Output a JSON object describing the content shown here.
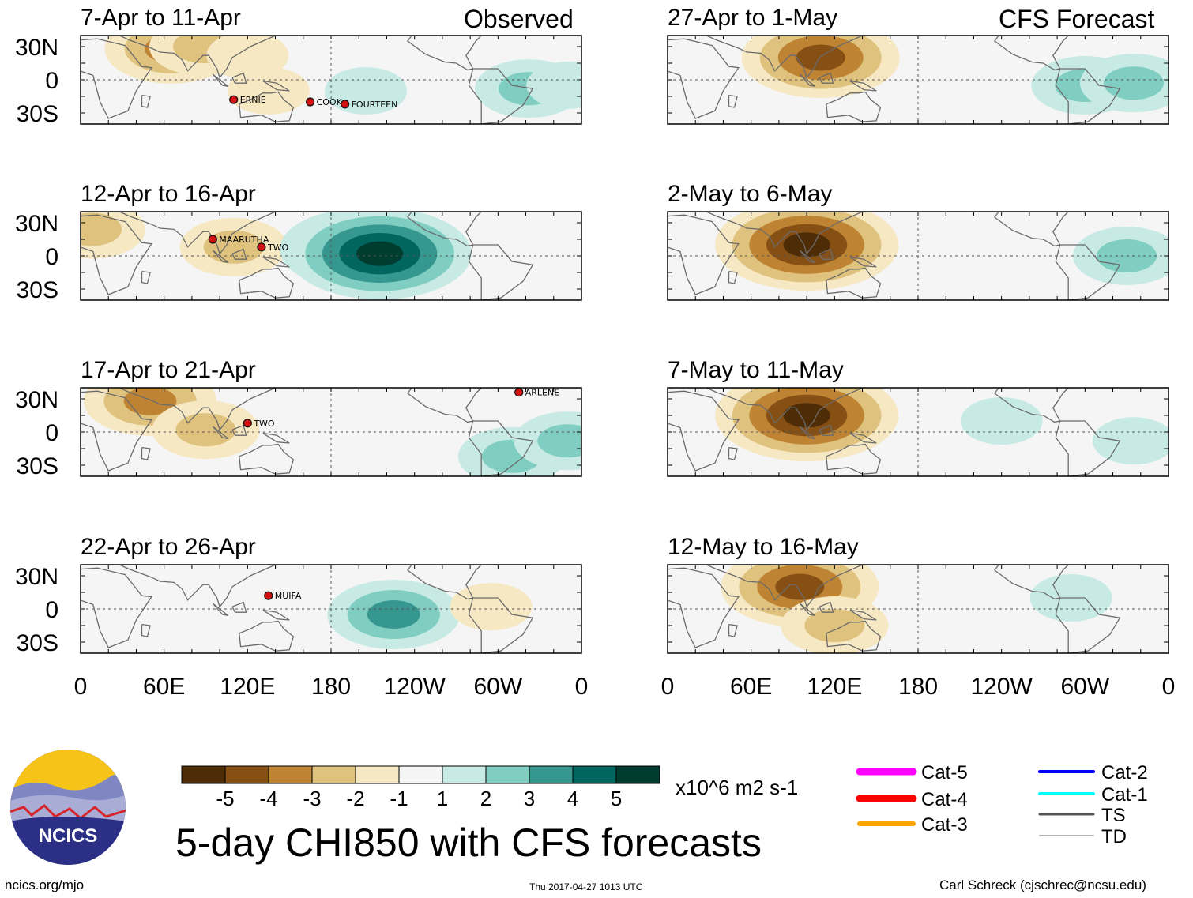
{
  "title": "5-day CHI850 with CFS forecasts",
  "headers": {
    "observed": "Observed",
    "forecast": "CFS Forecast"
  },
  "logo": {
    "text": "NCICS"
  },
  "footer": {
    "left": "ncics.org/mjo",
    "timestamp": "Thu 2017-04-27 1013 UTC",
    "credit": "Carl Schreck (cjschrec@ncsu.edu)"
  },
  "chart_data": {
    "type": "heatmap",
    "variable": "CHI850",
    "units": "x10^6 m2 s-1",
    "x_ticks": [
      "0",
      "60E",
      "120E",
      "180",
      "120W",
      "60W",
      "0"
    ],
    "y_ticks": [
      "30N",
      "0",
      "30S"
    ],
    "lon_range": [
      0,
      360
    ],
    "lat_range": [
      -40,
      40
    ],
    "colorbar": {
      "labels": [
        "-5",
        "-4",
        "-3",
        "-2",
        "-1",
        "1",
        "2",
        "3",
        "4",
        "5"
      ],
      "colors": [
        "#4e2c06",
        "#865014",
        "#bf8433",
        "#dfc27d",
        "#f6e8c3",
        "#f5f5f5",
        "#c7eae5",
        "#80cdc1",
        "#35978f",
        "#01665e",
        "#003c30"
      ]
    },
    "legend": [
      {
        "label": "Cat-5",
        "color": "#ff00ff"
      },
      {
        "label": "Cat-4",
        "color": "#ff0000"
      },
      {
        "label": "Cat-3",
        "color": "#ffa500"
      },
      {
        "label": "Cat-2",
        "color": "#0000ff"
      },
      {
        "label": "Cat-1",
        "color": "#00ffff"
      },
      {
        "label": "TS",
        "color": "#555555"
      },
      {
        "label": "TD",
        "color": "#999999"
      }
    ],
    "panels": [
      {
        "period": "7-Apr to 11-Apr",
        "kind": "observed",
        "anomalies": [
          {
            "lon": 65,
            "lat": 28,
            "value": -3
          },
          {
            "lon": 88,
            "lat": 30,
            "value": -2
          },
          {
            "lon": 120,
            "lat": 22,
            "value": -1
          },
          {
            "lon": 135,
            "lat": -10,
            "value": -1
          },
          {
            "lon": 205,
            "lat": -10,
            "value": 1
          },
          {
            "lon": 322,
            "lat": -8,
            "value": 2
          },
          {
            "lon": 350,
            "lat": -5,
            "value": 1
          }
        ],
        "storms": [
          {
            "name": "ERNIE",
            "lon": 110,
            "lat": -18
          },
          {
            "name": "COOK",
            "lon": 165,
            "lat": -20
          },
          {
            "name": "FOURTEEN",
            "lon": 190,
            "lat": -22
          }
        ]
      },
      {
        "period": "12-Apr to 16-Apr",
        "kind": "observed",
        "anomalies": [
          {
            "lon": 8,
            "lat": 24,
            "value": -2
          },
          {
            "lon": 110,
            "lat": 8,
            "value": -2
          },
          {
            "lon": 200,
            "lat": 6,
            "value": 4
          },
          {
            "lon": 215,
            "lat": 2,
            "value": 5
          }
        ],
        "storms": [
          {
            "name": "MAARUTHA",
            "lon": 95,
            "lat": 15
          },
          {
            "name": "TWO",
            "lon": 130,
            "lat": 8
          }
        ]
      },
      {
        "period": "17-Apr to 21-Apr",
        "kind": "observed",
        "anomalies": [
          {
            "lon": 50,
            "lat": 28,
            "value": -3
          },
          {
            "lon": 90,
            "lat": 2,
            "value": -2
          },
          {
            "lon": 310,
            "lat": -22,
            "value": 2
          },
          {
            "lon": 350,
            "lat": -8,
            "value": 2
          }
        ],
        "storms": [
          {
            "name": "TWO",
            "lon": 120,
            "lat": 8
          },
          {
            "name": "ARLENE",
            "lon": 315,
            "lat": 36
          }
        ]
      },
      {
        "period": "22-Apr to 26-Apr",
        "kind": "observed",
        "anomalies": [
          {
            "lon": 225,
            "lat": -5,
            "value": 3
          },
          {
            "lon": 295,
            "lat": 2,
            "value": -1
          }
        ],
        "storms": [
          {
            "name": "MUIFA",
            "lon": 135,
            "lat": 12
          }
        ]
      },
      {
        "period": "27-Apr to 1-May",
        "kind": "forecast",
        "anomalies": [
          {
            "lon": 110,
            "lat": 20,
            "value": -4
          },
          {
            "lon": 300,
            "lat": -5,
            "value": 2
          },
          {
            "lon": 335,
            "lat": -3,
            "value": 2
          }
        ],
        "storms": []
      },
      {
        "period": "2-May to 6-May",
        "kind": "forecast",
        "anomalies": [
          {
            "lon": 100,
            "lat": 10,
            "value": -5
          },
          {
            "lon": 330,
            "lat": 0,
            "value": 2
          }
        ],
        "storms": []
      },
      {
        "period": "7-May to 11-May",
        "kind": "forecast",
        "anomalies": [
          {
            "lon": 100,
            "lat": 15,
            "value": -5
          },
          {
            "lon": 240,
            "lat": 10,
            "value": 1
          },
          {
            "lon": 335,
            "lat": -8,
            "value": 1
          }
        ],
        "storms": []
      },
      {
        "period": "12-May to 16-May",
        "kind": "forecast",
        "anomalies": [
          {
            "lon": 95,
            "lat": 20,
            "value": -4
          },
          {
            "lon": 120,
            "lat": -15,
            "value": -2
          },
          {
            "lon": 290,
            "lat": 10,
            "value": 1
          }
        ],
        "storms": []
      }
    ]
  }
}
